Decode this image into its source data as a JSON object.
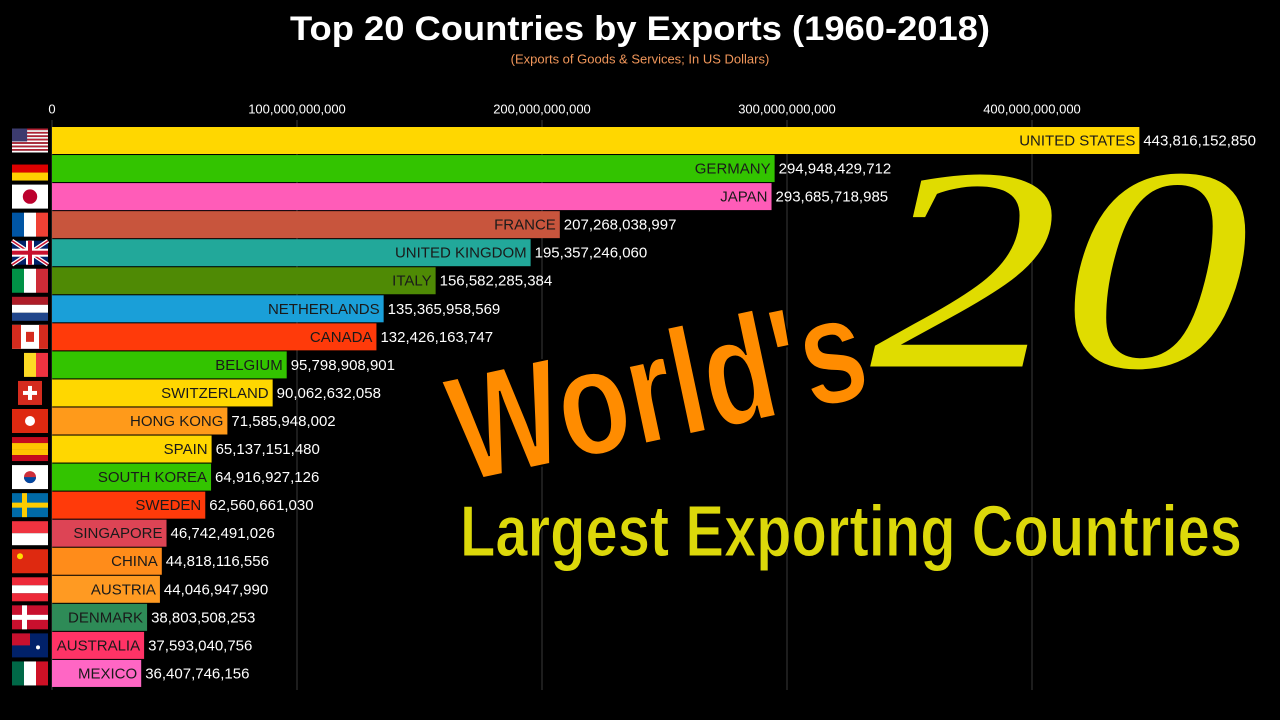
{
  "chart_data": {
    "type": "bar",
    "orientation": "horizontal",
    "title": "Top 20 Countries by Exports (1960-2018)",
    "subtitle": "(Exports of Goods & Services; In US Dollars)",
    "categories": [
      "UNITED STATES",
      "GERMANY",
      "JAPAN",
      "FRANCE",
      "UNITED KINGDOM",
      "ITALY",
      "NETHERLANDS",
      "CANADA",
      "BELGIUM",
      "SWITZERLAND",
      "HONG KONG",
      "SPAIN",
      "SOUTH KOREA",
      "SWEDEN",
      "SINGAPORE",
      "CHINA",
      "AUSTRIA",
      "DENMARK",
      "AUSTRALIA",
      "MEXICO"
    ],
    "values": [
      443816152850,
      294948429712,
      293685718985,
      207268038997,
      195357246060,
      156582285384,
      135365958569,
      132426163747,
      95798908901,
      90062632058,
      71585948002,
      65137151480,
      64916927126,
      62560661030,
      46742491026,
      44818116556,
      44046947990,
      38803508253,
      37593040756,
      36407746156
    ],
    "value_labels": [
      "443,816,152,850",
      "294,948,429,712",
      "293,685,718,985",
      "207,268,038,997",
      "195,357,246,060",
      "156,582,285,384",
      "135,365,958,569",
      "132,426,163,747",
      "95,798,908,901",
      "90,062,632,058",
      "71,585,948,002",
      "65,137,151,480",
      "64,916,927,126",
      "62,560,661,030",
      "46,742,491,026",
      "44,818,116,556",
      "44,046,947,990",
      "38,803,508,253",
      "37,593,040,756",
      "36,407,746,156"
    ],
    "colors": [
      "#ffd700",
      "#33c400",
      "#ff5cb8",
      "#c8553d",
      "#22a89a",
      "#4f8a05",
      "#1a9fd8",
      "#ff3a0a",
      "#33c400",
      "#ffd700",
      "#ff9a1a",
      "#ffd700",
      "#33c400",
      "#ff3a0a",
      "#dd4455",
      "#ff8c1a",
      "#ff9a22",
      "#2e8b57",
      "#ff3366",
      "#ff66c4"
    ],
    "xlim": [
      0,
      500000000000
    ],
    "xticks": [
      0,
      {
        "value": 100000000000,
        "label": "100,000,000,000"
      },
      {
        "value": 200000000000,
        "label": "200,000,000,000"
      },
      {
        "value": 300000000000,
        "label": "300,000,000,000"
      },
      {
        "value": 400000000000,
        "label": "400,000,000,000"
      }
    ],
    "grid": true,
    "annotations": [
      "World's",
      "20",
      "Largest Exporting Countries"
    ]
  }
}
